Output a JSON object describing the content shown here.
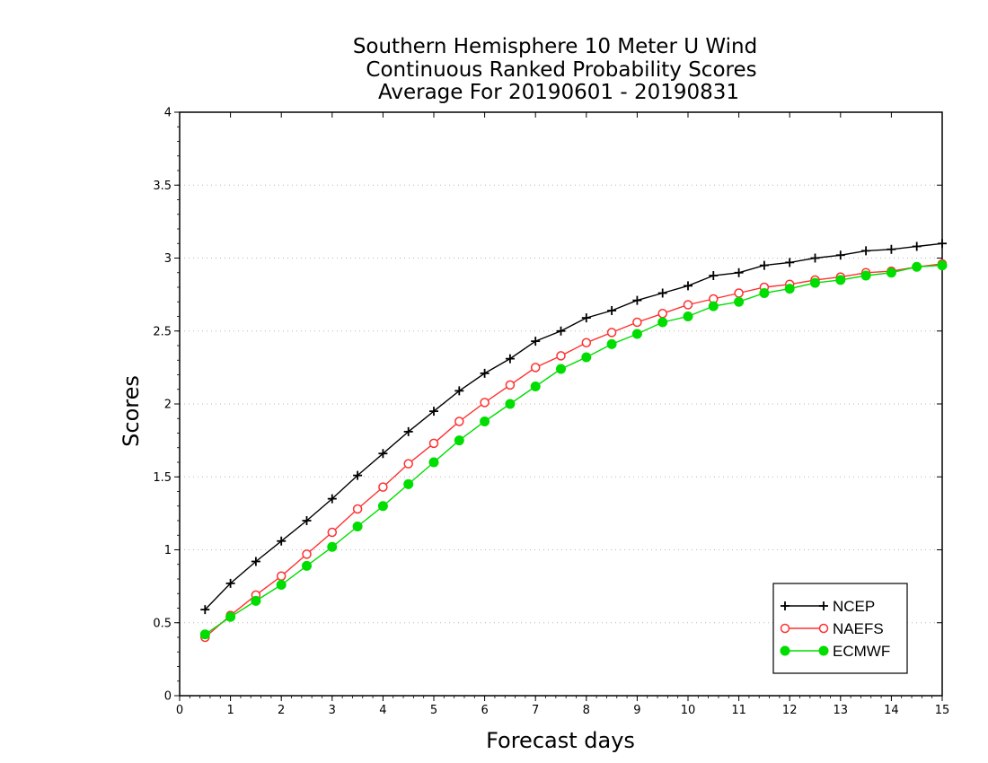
{
  "chart_data": {
    "type": "line",
    "title": [
      "Southern Hemisphere 10 Meter U Wind",
      "Continuous Ranked Probability Scores",
      "Average For 20190601 - 20190831"
    ],
    "xlabel": "Forecast days",
    "ylabel": "Scores",
    "xlim": [
      0,
      15
    ],
    "ylim": [
      0,
      4
    ],
    "x_ticks": [
      "0",
      "1",
      "2",
      "3",
      "4",
      "5",
      "6",
      "7",
      "8",
      "9",
      "10",
      "11",
      "12",
      "13",
      "14",
      "15"
    ],
    "y_ticks": [
      "0",
      "0.5",
      "1",
      "1.5",
      "2",
      "2.5",
      "3",
      "3.5",
      "4"
    ],
    "grid": "horizontal dotted",
    "legend_position": "bottom-right",
    "x": [
      0.5,
      1.0,
      1.5,
      2.0,
      2.5,
      3.0,
      3.5,
      4.0,
      4.5,
      5.0,
      5.5,
      6.0,
      6.5,
      7.0,
      7.5,
      8.0,
      8.5,
      9.0,
      9.5,
      10.0,
      10.5,
      11.0,
      11.5,
      12.0,
      12.5,
      13.0,
      13.5,
      14.0,
      14.5,
      15.0
    ],
    "series": [
      {
        "name": "NCEP",
        "color": "#000000",
        "marker": "plus",
        "values": [
          0.59,
          0.77,
          0.92,
          1.06,
          1.2,
          1.35,
          1.51,
          1.66,
          1.81,
          1.95,
          2.09,
          2.21,
          2.31,
          2.43,
          2.5,
          2.59,
          2.64,
          2.71,
          2.76,
          2.81,
          2.88,
          2.9,
          2.95,
          2.97,
          3.0,
          3.02,
          3.05,
          3.06,
          3.08,
          3.1
        ]
      },
      {
        "name": "NAEFS",
        "color": "#ff3030",
        "marker": "open-circle",
        "values": [
          0.4,
          0.55,
          0.69,
          0.82,
          0.97,
          1.12,
          1.28,
          1.43,
          1.59,
          1.73,
          1.88,
          2.01,
          2.13,
          2.25,
          2.33,
          2.42,
          2.49,
          2.56,
          2.62,
          2.68,
          2.72,
          2.76,
          2.8,
          2.82,
          2.85,
          2.87,
          2.9,
          2.91,
          2.94,
          2.96
        ]
      },
      {
        "name": "ECMWF",
        "color": "#00dd00",
        "marker": "filled-circle",
        "values": [
          0.42,
          0.54,
          0.65,
          0.76,
          0.89,
          1.02,
          1.16,
          1.3,
          1.45,
          1.6,
          1.75,
          1.88,
          2.0,
          2.12,
          2.24,
          2.32,
          2.41,
          2.48,
          2.56,
          2.6,
          2.67,
          2.7,
          2.76,
          2.79,
          2.83,
          2.85,
          2.88,
          2.9,
          2.94,
          2.95
        ]
      }
    ]
  }
}
